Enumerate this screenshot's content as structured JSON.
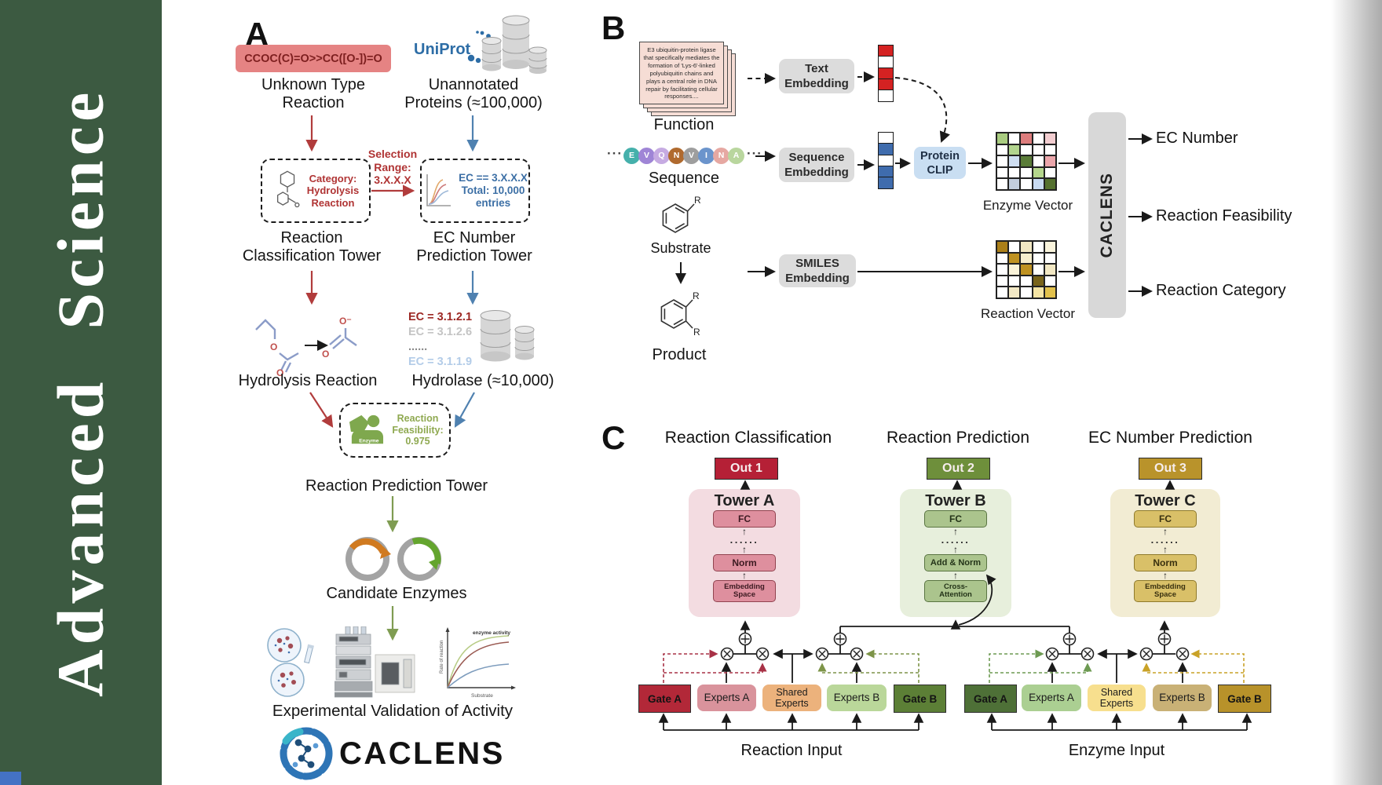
{
  "journal": {
    "title": "Advanced Science"
  },
  "colors": {
    "sidebar_green": "#3c5a41",
    "accent_red": "#b03434",
    "accent_blue": "#3c6fa5",
    "accent_green": "#7f9c52",
    "out1": "#b52036",
    "out2": "#6e8f3b",
    "out3": "#b9932b"
  },
  "panelA": {
    "label": "A",
    "smiles": "CCOC(C)=O>>CC([O-])=O",
    "uniprot": "UniProt",
    "unknown_reaction": "Unknown Type\nReaction",
    "unannotated": "Unannotated\nProteins (≈100,000)",
    "selection": "Selection\nRange:\n3.X.X.X",
    "category_box": "Category:\nHydrolysis\nReaction",
    "ec_box": "EC == 3.X.X.X\nTotal: 10,000\nentries",
    "classification_tower": "Reaction\nClassification Tower",
    "ec_tower": "EC Number\nPrediction Tower",
    "hydrolysis": "Hydrolysis Reaction",
    "hydrolase": "Hydrolase (≈10,000)",
    "ec_list": [
      {
        "text": "EC = 3.1.2.1",
        "color": "#9c2723"
      },
      {
        "text": "EC = 3.1.2.6",
        "color": "#c4c4c4"
      },
      {
        "text": "......",
        "color": "#8a8a8a"
      },
      {
        "text": "EC = 3.1.1.9",
        "color": "#b3cce8"
      }
    ],
    "enzyme_badge": "Enzyme",
    "feasibility": "Reaction\nFeasibility:\n0.975",
    "prediction_tower": "Reaction Prediction Tower",
    "candidates": "Candidate Enzymes",
    "graph": {
      "curve_label": "enzyme activity",
      "ylabel": "Rate of reaction",
      "xlabel": "Substrate"
    },
    "validation": "Experimental Validation of Activity",
    "brand": "CACLENS",
    "atoms": {
      "o": "O",
      "o_minus": "O⁻",
      "r": "R"
    }
  },
  "panelB": {
    "label": "B",
    "function_card": "E3 ubiquitin-protein ligase that specifically mediates the formation of 'Lys-6'-linked polyubiquitin chains and plays a central role in DNA repair by facilitating cellular responses....",
    "function_label": "Function",
    "ellipsis": "···",
    "sequence_tokens": [
      {
        "letter": "E",
        "color": "#45b0ab"
      },
      {
        "letter": "V",
        "color": "#9f85d6"
      },
      {
        "letter": "Q",
        "color": "#c6abe2"
      },
      {
        "letter": "N",
        "color": "#b06a2e"
      },
      {
        "letter": "V",
        "color": "#9e9e9e"
      },
      {
        "letter": "I",
        "color": "#6b94cc"
      },
      {
        "letter": "N",
        "color": "#e6a8a2"
      },
      {
        "letter": "A",
        "color": "#b9d69e"
      }
    ],
    "sequence_label": "Sequence",
    "substrate_label": "Substrate",
    "product_label": "Product",
    "text_embedding": "Text\nEmbedding",
    "sequence_embedding": "Sequence\nEmbedding",
    "smiles_embedding": "SMILES\nEmbedding",
    "protein_clip": "Protein\nCLIP",
    "text_vector_cells": [
      "#d42222",
      "#ffffff",
      "#d42222",
      "#d42222",
      "#ffffff"
    ],
    "sequence_vector_cells": [
      "#ffffff",
      "#3f6cad",
      "#ffffff",
      "#3f6cad",
      "#3f6cad"
    ],
    "enzyme_matrix": [
      [
        "#a9cc80",
        "#ffffff",
        "#dd7d7d",
        "#ffffff",
        "#f2cdd0"
      ],
      [
        "#ffffff",
        "#b2d48e",
        "#ffffff",
        "#ffffff",
        "#ffffff"
      ],
      [
        "#ffffff",
        "#cfdef1",
        "#5a7c38",
        "#ffffff",
        "#eba6ab"
      ],
      [
        "#ffffff",
        "#ffffff",
        "#ffffff",
        "#b4d68c",
        "#ffffff"
      ],
      [
        "#ffffff",
        "#c3cedd",
        "#ffffff",
        "#c8daf1",
        "#55712f"
      ]
    ],
    "reaction_matrix": [
      [
        "#ab7f18",
        "#ffffff",
        "#f2e8c4",
        "#ffffff",
        "#faf4dc"
      ],
      [
        "#ffffff",
        "#bf9222",
        "#f6eecd",
        "#ffffff",
        "#ffffff"
      ],
      [
        "#ffffff",
        "#faf3d9",
        "#bf9222",
        "#ffffff",
        "#f2e8c4"
      ],
      [
        "#ffffff",
        "#ffffff",
        "#ffffff",
        "#79641a",
        "#ffffff"
      ],
      [
        "#ffffff",
        "#f2e8c4",
        "#ffffff",
        "#f4e4a4",
        "#e2c14c"
      ]
    ],
    "enzyme_vector_label": "Enzyme Vector",
    "reaction_vector_label": "Reaction Vector",
    "caclens_bar": "CACLENS",
    "outputs": [
      "EC Number",
      "Reaction Feasibility",
      "Reaction Category"
    ]
  },
  "panelC": {
    "label": "C",
    "columns": [
      {
        "title": "Reaction Classification",
        "out": "Out 1",
        "tower": "Tower A",
        "boxes": [
          "FC",
          "......",
          "Norm",
          "Embedding\nSpace"
        ]
      },
      {
        "title": "Reaction Prediction",
        "out": "Out 2",
        "tower": "Tower B",
        "boxes": [
          "FC",
          "......",
          "Add & Norm",
          "Cross-\nAttention"
        ]
      },
      {
        "title": "EC Number Prediction",
        "out": "Out 3",
        "tower": "Tower C",
        "boxes": [
          "FC",
          "......",
          "Norm",
          "Embedding\nSpace"
        ]
      }
    ],
    "groups": [
      {
        "label": "Reaction Input",
        "boxes": [
          "Gate A",
          "Experts A",
          "Shared\nExperts",
          "Experts B",
          "Gate B"
        ]
      },
      {
        "label": "Enzyme Input",
        "boxes": [
          "Gate A",
          "Experts A",
          "Shared\nExperts",
          "Experts B",
          "Gate B"
        ]
      }
    ]
  }
}
